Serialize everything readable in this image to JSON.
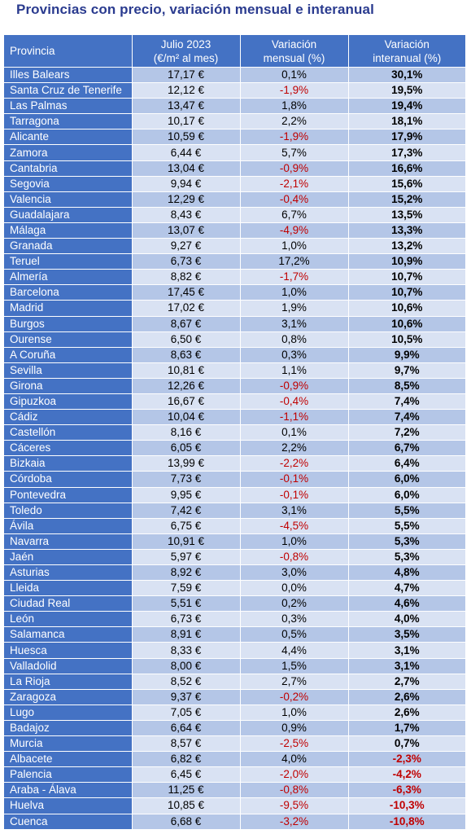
{
  "title": "Provincias con precio, variación mensual e interanual",
  "headers": {
    "provincia": "Provincia",
    "precio_l1": "Julio 2023",
    "precio_l2": "(€/m² al mes)",
    "mensual_l1": "Variación",
    "mensual_l2": "mensual (%)",
    "interanual_l1": "Variación",
    "interanual_l2": "interanual (%)"
  },
  "colors": {
    "title": "#2a3b8f",
    "header_bg": "#4472c4",
    "row_dark": "#b4c6e7",
    "row_light": "#d9e2f3",
    "negative": "#c00000"
  },
  "rows": [
    {
      "provincia": "Illes Balears",
      "precio": "17,17 €",
      "mensual": "0,1%",
      "interanual": "30,1%"
    },
    {
      "provincia": "Santa Cruz de Tenerife",
      "precio": "12,12 €",
      "mensual": "-1,9%",
      "interanual": "19,5%"
    },
    {
      "provincia": "Las Palmas",
      "precio": "13,47 €",
      "mensual": "1,8%",
      "interanual": "19,4%"
    },
    {
      "provincia": "Tarragona",
      "precio": "10,17 €",
      "mensual": "2,2%",
      "interanual": "18,1%"
    },
    {
      "provincia": "Alicante",
      "precio": "10,59 €",
      "mensual": "-1,9%",
      "interanual": "17,9%"
    },
    {
      "provincia": "Zamora",
      "precio": "6,44 €",
      "mensual": "5,7%",
      "interanual": "17,3%"
    },
    {
      "provincia": "Cantabria",
      "precio": "13,04 €",
      "mensual": "-0,9%",
      "interanual": "16,6%"
    },
    {
      "provincia": "Segovia",
      "precio": "9,94 €",
      "mensual": "-2,1%",
      "interanual": "15,6%"
    },
    {
      "provincia": "Valencia",
      "precio": "12,29 €",
      "mensual": "-0,4%",
      "interanual": "15,2%"
    },
    {
      "provincia": "Guadalajara",
      "precio": "8,43 €",
      "mensual": "6,7%",
      "interanual": "13,5%"
    },
    {
      "provincia": "Málaga",
      "precio": "13,07 €",
      "mensual": "-4,9%",
      "interanual": "13,3%"
    },
    {
      "provincia": "Granada",
      "precio": "9,27 €",
      "mensual": "1,0%",
      "interanual": "13,2%"
    },
    {
      "provincia": "Teruel",
      "precio": "6,73 €",
      "mensual": "17,2%",
      "interanual": "10,9%"
    },
    {
      "provincia": "Almería",
      "precio": "8,82 €",
      "mensual": "-1,7%",
      "interanual": "10,7%"
    },
    {
      "provincia": "Barcelona",
      "precio": "17,45 €",
      "mensual": "1,0%",
      "interanual": "10,7%"
    },
    {
      "provincia": "Madrid",
      "precio": "17,02 €",
      "mensual": "1,9%",
      "interanual": "10,6%"
    },
    {
      "provincia": "Burgos",
      "precio": "8,67 €",
      "mensual": "3,1%",
      "interanual": "10,6%"
    },
    {
      "provincia": "Ourense",
      "precio": "6,50 €",
      "mensual": "0,8%",
      "interanual": "10,5%"
    },
    {
      "provincia": "A Coruña",
      "precio": "8,63 €",
      "mensual": "0,3%",
      "interanual": "9,9%"
    },
    {
      "provincia": "Sevilla",
      "precio": "10,81 €",
      "mensual": "1,1%",
      "interanual": "9,7%"
    },
    {
      "provincia": "Girona",
      "precio": "12,26 €",
      "mensual": "-0,9%",
      "interanual": "8,5%"
    },
    {
      "provincia": "Gipuzkoa",
      "precio": "16,67 €",
      "mensual": "-0,4%",
      "interanual": "7,4%"
    },
    {
      "provincia": "Cádiz",
      "precio": "10,04 €",
      "mensual": "-1,1%",
      "interanual": "7,4%"
    },
    {
      "provincia": "Castellón",
      "precio": "8,16 €",
      "mensual": "0,1%",
      "interanual": "7,2%"
    },
    {
      "provincia": "Cáceres",
      "precio": "6,05 €",
      "mensual": "2,2%",
      "interanual": "6,7%"
    },
    {
      "provincia": "Bizkaia",
      "precio": "13,99 €",
      "mensual": "-2,2%",
      "interanual": "6,4%"
    },
    {
      "provincia": "Córdoba",
      "precio": "7,73 €",
      "mensual": "-0,1%",
      "interanual": "6,0%"
    },
    {
      "provincia": "Pontevedra",
      "precio": "9,95 €",
      "mensual": "-0,1%",
      "interanual": "6,0%"
    },
    {
      "provincia": "Toledo",
      "precio": "7,42 €",
      "mensual": "3,1%",
      "interanual": "5,5%"
    },
    {
      "provincia": "Ávila",
      "precio": "6,75 €",
      "mensual": "-4,5%",
      "interanual": "5,5%"
    },
    {
      "provincia": "Navarra",
      "precio": "10,91 €",
      "mensual": "1,0%",
      "interanual": "5,3%"
    },
    {
      "provincia": "Jaén",
      "precio": "5,97 €",
      "mensual": "-0,8%",
      "interanual": "5,3%"
    },
    {
      "provincia": "Asturias",
      "precio": "8,92 €",
      "mensual": "3,0%",
      "interanual": "4,8%"
    },
    {
      "provincia": "Lleida",
      "precio": "7,59 €",
      "mensual": "0,0%",
      "interanual": "4,7%"
    },
    {
      "provincia": "Ciudad Real",
      "precio": "5,51 €",
      "mensual": "0,2%",
      "interanual": "4,6%"
    },
    {
      "provincia": "León",
      "precio": "6,73 €",
      "mensual": "0,3%",
      "interanual": "4,0%"
    },
    {
      "provincia": "Salamanca",
      "precio": "8,91 €",
      "mensual": "0,5%",
      "interanual": "3,5%"
    },
    {
      "provincia": "Huesca",
      "precio": "8,33 €",
      "mensual": "4,4%",
      "interanual": "3,1%"
    },
    {
      "provincia": "Valladolid",
      "precio": "8,00 €",
      "mensual": "1,5%",
      "interanual": "3,1%"
    },
    {
      "provincia": "La Rioja",
      "precio": "8,52 €",
      "mensual": "2,7%",
      "interanual": "2,7%"
    },
    {
      "provincia": "Zaragoza",
      "precio": "9,37 €",
      "mensual": "-0,2%",
      "interanual": "2,6%"
    },
    {
      "provincia": "Lugo",
      "precio": "7,05 €",
      "mensual": "1,0%",
      "interanual": "2,6%"
    },
    {
      "provincia": "Badajoz",
      "precio": "6,64 €",
      "mensual": "0,9%",
      "interanual": "1,7%"
    },
    {
      "provincia": "Murcia",
      "precio": "8,57 €",
      "mensual": "-2,5%",
      "interanual": "0,7%"
    },
    {
      "provincia": "Albacete",
      "precio": "6,82 €",
      "mensual": "4,0%",
      "interanual": "-2,3%"
    },
    {
      "provincia": "Palencia",
      "precio": "6,45 €",
      "mensual": "-2,0%",
      "interanual": "-4,2%"
    },
    {
      "provincia": "Araba - Álava",
      "precio": "11,25 €",
      "mensual": "-0,8%",
      "interanual": "-6,3%"
    },
    {
      "provincia": "Huelva",
      "precio": "10,85 €",
      "mensual": "-9,5%",
      "interanual": "-10,3%"
    },
    {
      "provincia": "Cuenca",
      "precio": "6,68 €",
      "mensual": "-3,2%",
      "interanual": "-10,8%"
    }
  ]
}
